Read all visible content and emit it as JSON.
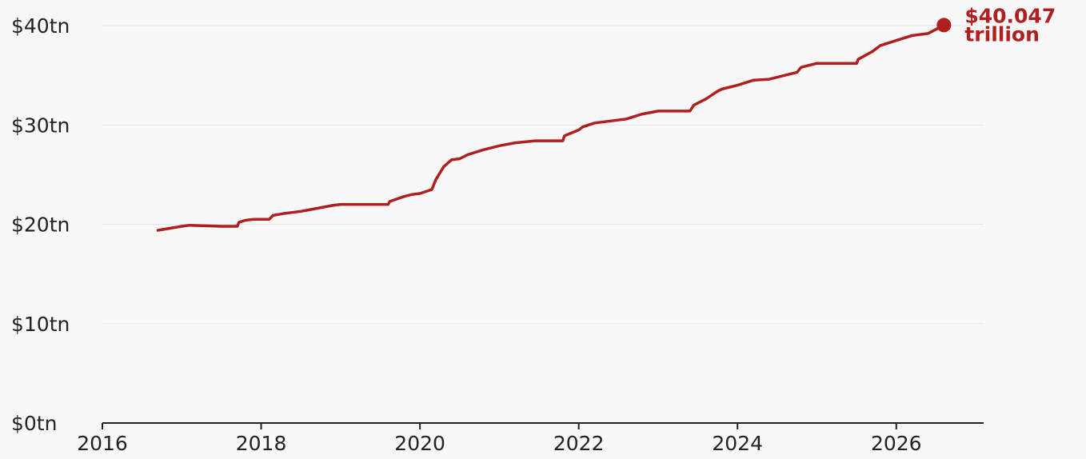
{
  "chart_data": {
    "type": "line",
    "title": "",
    "xlabel": "",
    "ylabel": "",
    "xlim": [
      2016,
      2027.1
    ],
    "ylim": [
      0,
      40
    ],
    "y_ticks": [
      0,
      10,
      20,
      30,
      40
    ],
    "y_tick_labels": [
      "$0tn",
      "$10tn",
      "$20tn",
      "$30tn",
      "$40tn"
    ],
    "x_ticks": [
      2016,
      2018,
      2020,
      2022,
      2024,
      2026
    ],
    "x_tick_labels": [
      "2016",
      "2018",
      "2020",
      "2022",
      "2024",
      "2026"
    ],
    "grid": true,
    "legend": "none",
    "line_color": "#b01e1e",
    "series": [
      {
        "x": [
          2016.7,
          2016.85,
          2017.0,
          2017.1,
          2017.3,
          2017.5,
          2017.7,
          2017.72,
          2017.8,
          2017.9,
          2018.0,
          2018.1,
          2018.15,
          2018.3,
          2018.5,
          2018.7,
          2018.9,
          2019.0,
          2019.2,
          2019.4,
          2019.6,
          2019.62,
          2019.8,
          2019.9,
          2020.0,
          2020.15,
          2020.2,
          2020.3,
          2020.4,
          2020.5,
          2020.6,
          2020.8,
          2021.0,
          2021.2,
          2021.45,
          2021.5,
          2021.6,
          2021.8,
          2021.82,
          2022.0,
          2022.05,
          2022.2,
          2022.4,
          2022.6,
          2022.8,
          2023.0,
          2023.2,
          2023.4,
          2023.45,
          2023.6,
          2023.75,
          2023.8,
          2024.0,
          2024.2,
          2024.4,
          2024.6,
          2024.75,
          2024.8,
          2025.0,
          2025.2,
          2025.5,
          2025.52,
          2025.7,
          2025.8,
          2026.0,
          2026.2,
          2026.4,
          2026.6
        ],
        "y": [
          19.4,
          19.6,
          19.8,
          19.9,
          19.85,
          19.8,
          19.8,
          20.2,
          20.4,
          20.5,
          20.5,
          20.5,
          20.9,
          21.1,
          21.3,
          21.6,
          21.9,
          22.0,
          22.0,
          22.0,
          22.0,
          22.3,
          22.8,
          23.0,
          23.1,
          23.5,
          24.5,
          25.8,
          26.5,
          26.6,
          27.0,
          27.5,
          27.9,
          28.2,
          28.4,
          28.4,
          28.4,
          28.4,
          28.9,
          29.5,
          29.8,
          30.2,
          30.4,
          30.6,
          31.1,
          31.4,
          31.4,
          31.4,
          32.0,
          32.6,
          33.4,
          33.6,
          34.0,
          34.5,
          34.6,
          35.0,
          35.3,
          35.8,
          36.2,
          36.2,
          36.2,
          36.6,
          37.4,
          38.0,
          38.5,
          39.0,
          39.2,
          40.047
        ]
      }
    ],
    "annotations": [
      {
        "x": 2026.6,
        "y": 40.047,
        "text_line1": "$40.047",
        "text_line2": "trillion"
      }
    ]
  }
}
